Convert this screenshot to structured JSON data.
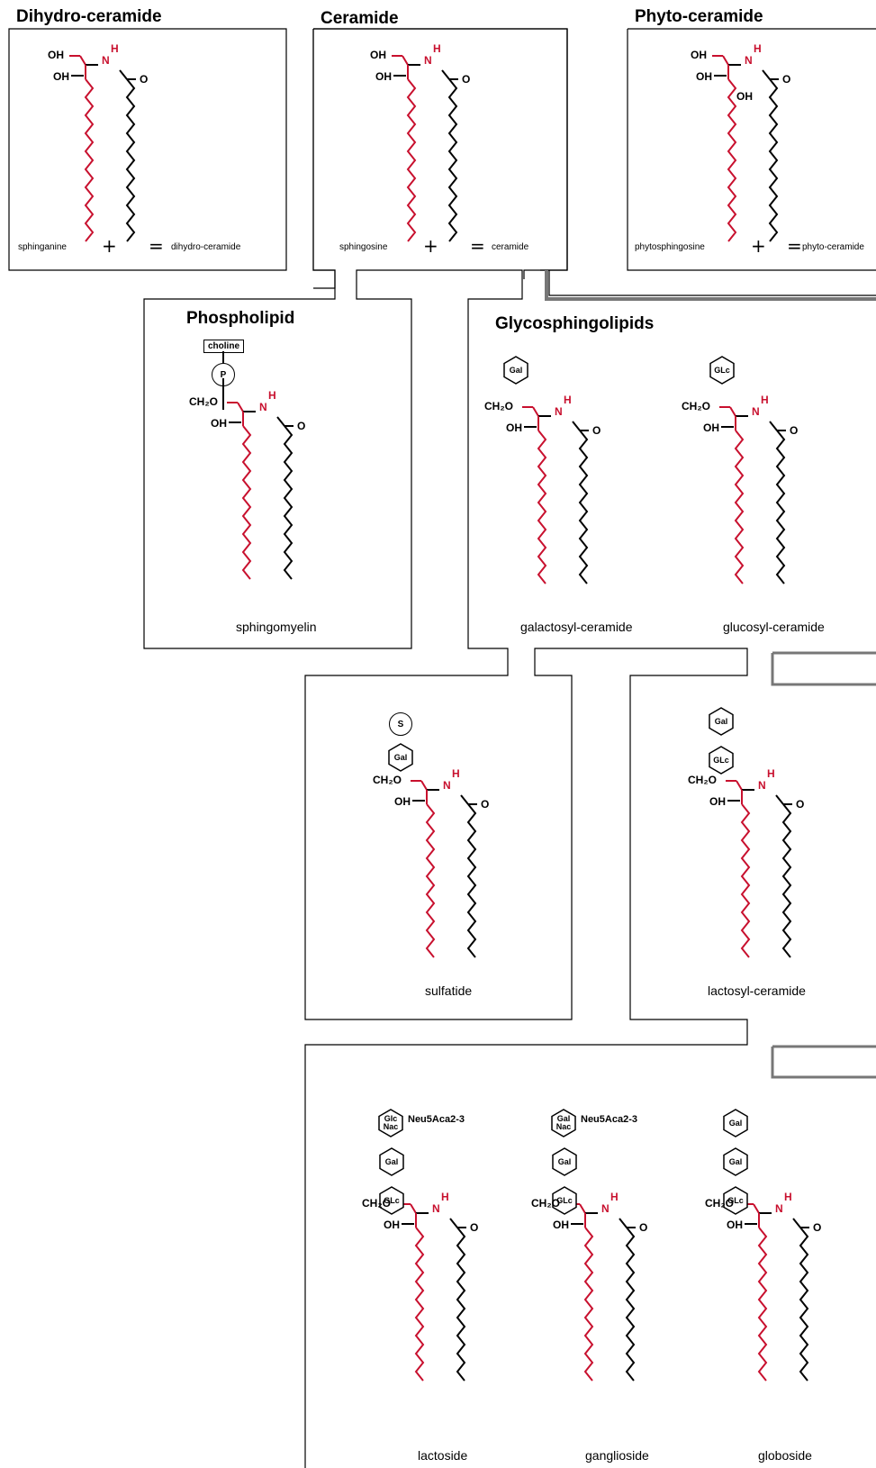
{
  "panels": {
    "dihydroceramide": {
      "title": "Dihydro-ceramide",
      "left": "sphinganine",
      "right": "dihydro-ceramide"
    },
    "ceramide": {
      "title": "Ceramide",
      "left": "sphingosine",
      "right": "ceramide"
    },
    "phytoceramide": {
      "title": "Phyto-ceramide",
      "left": "phytosphingosine",
      "right": "phyto-ceramide"
    },
    "phospholipid": {
      "title": "Phospholipid",
      "head": "choline",
      "phosphate": "P",
      "name": "sphingomyelin"
    },
    "glyco": {
      "title": "Glycosphingolipids",
      "gal": "Gal",
      "glc": "GLc",
      "name1": "galactosyl-ceramide",
      "name2": "glucosyl-ceramide"
    },
    "sulfatide": {
      "s": "S",
      "gal": "Gal",
      "name": "sulfatide"
    },
    "lactosyl": {
      "gal": "Gal",
      "glc": "GLc",
      "name": "lactosyl-ceramide"
    },
    "bottom": {
      "lactoside": {
        "top": "Glc Nac",
        "mid": "Gal",
        "bot": "GLc",
        "mod": "Neu5Aca2-3",
        "name": "lactoside"
      },
      "ganglioside": {
        "top": "Gal Nac",
        "mid": "Gal",
        "bot": "GLc",
        "mod": "Neu5Aca2-3",
        "name": "ganglioside"
      },
      "globoside": {
        "top": "Gal",
        "mid": "Gal",
        "bot": "GLc",
        "name": "globoside"
      }
    }
  },
  "atoms": {
    "oh": "OH",
    "n": "N",
    "h": "H",
    "o": "O",
    "ch2o": "CH₂O"
  },
  "operators": {
    "plus": "+",
    "equals": "="
  },
  "colors": {
    "red": "#c8102e",
    "black": "#000000"
  }
}
